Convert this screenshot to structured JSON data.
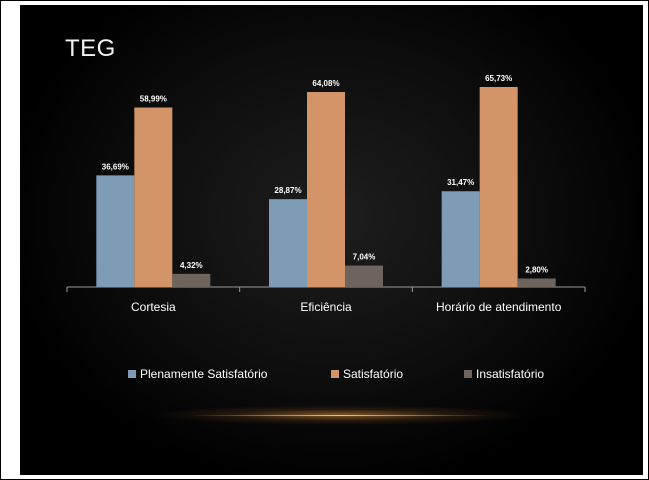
{
  "slide": {
    "title": "TEG"
  },
  "chart_data": {
    "type": "bar",
    "title": "",
    "xlabel": "",
    "ylabel": "",
    "categories": [
      "Cortesia",
      "Eficiência",
      "Horário de atendimento"
    ],
    "series": [
      {
        "name": "Plenamente Satisfatório",
        "color": "#7f9cb7",
        "values": [
          36.69,
          28.87,
          31.47
        ],
        "labels": [
          "36,69%",
          "28,87%",
          "31,47%"
        ]
      },
      {
        "name": "Satisfatório",
        "color": "#d39467",
        "values": [
          58.99,
          64.08,
          65.73
        ],
        "labels": [
          "58,99%",
          "64,08%",
          "65,73%"
        ]
      },
      {
        "name": "Insatisfatório",
        "color": "#6e645e",
        "values": [
          4.32,
          7.04,
          2.8
        ],
        "labels": [
          "4,32%",
          "7,04%",
          "2,80%"
        ]
      }
    ],
    "ylim": [
      0,
      70
    ],
    "grid": false,
    "legend": "bottom"
  }
}
